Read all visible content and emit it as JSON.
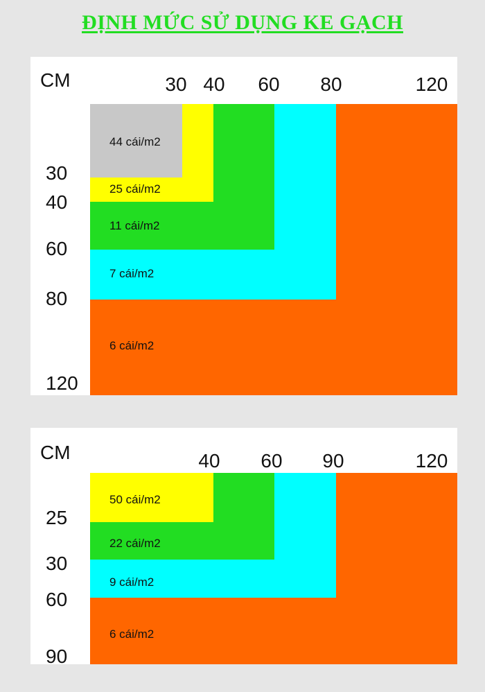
{
  "title": "ĐỊNH MỨC SỬ DỤNG KE GẠCH",
  "colors": {
    "gray": "#c8c8c8",
    "yellow": "#ffff00",
    "green": "#22dd22",
    "cyan": "#00ffff",
    "orange": "#ff6600"
  },
  "chart1": {
    "unit": "CM",
    "x_ticks": [
      "30",
      "40",
      "60",
      "80",
      "120"
    ],
    "y_ticks": [
      "30",
      "40",
      "60",
      "80",
      "120"
    ],
    "rates": [
      "44 cái/m2",
      "25 cái/m2",
      "11 cái/m2",
      "7 cái/m2",
      "6 cái/m2"
    ]
  },
  "chart2": {
    "unit": "CM",
    "x_ticks": [
      "40",
      "60",
      "90",
      "120"
    ],
    "y_ticks": [
      "25",
      "30",
      "60",
      "90"
    ],
    "rates": [
      "50 cái/m2",
      "22 cái/m2",
      "9 cái/m2",
      "6 cái/m2"
    ]
  }
}
